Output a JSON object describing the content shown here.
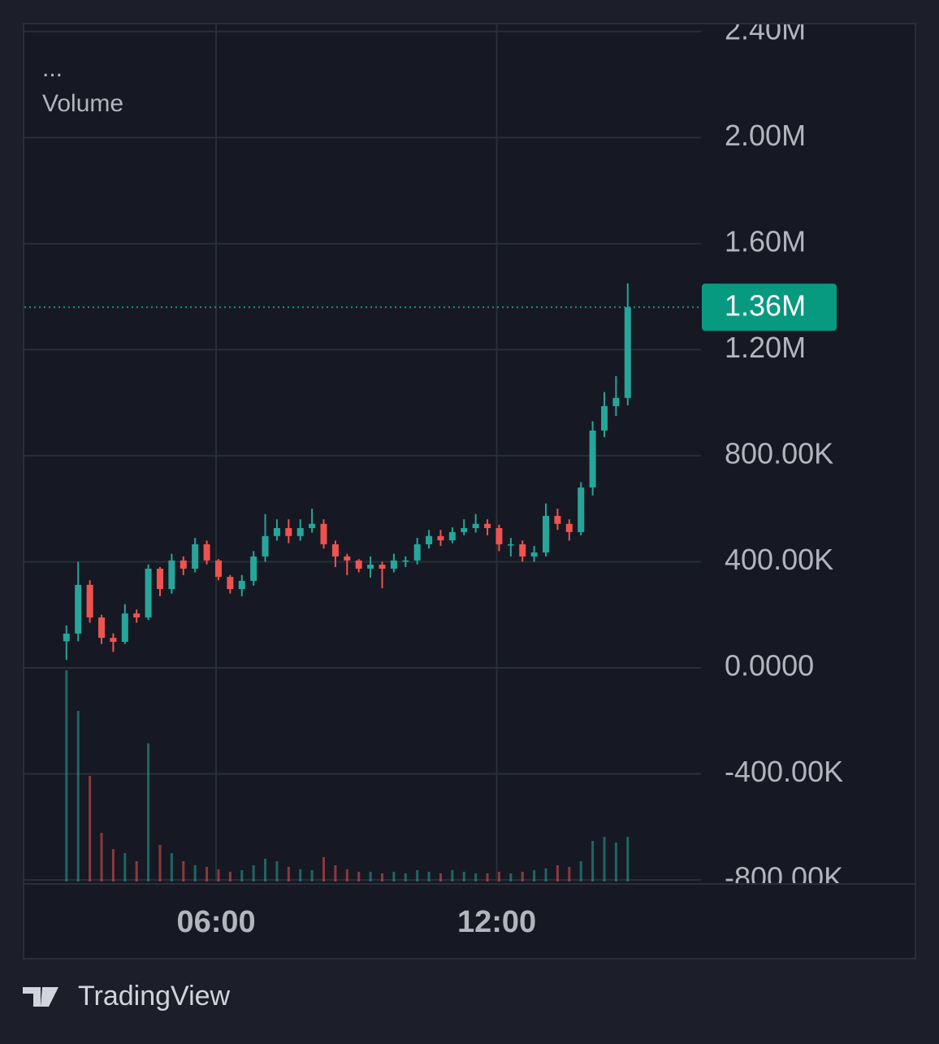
{
  "chart_data": {
    "type": "candlestick",
    "legend": {
      "more": "...",
      "label": "Volume"
    },
    "x": [
      168,
      183,
      198,
      213,
      228,
      243,
      258,
      273,
      288,
      303,
      318,
      333,
      348,
      363,
      378,
      393,
      408,
      423,
      438,
      453,
      468,
      483,
      498,
      513,
      528,
      543,
      558,
      573,
      588,
      603,
      618,
      633,
      648,
      663,
      678,
      693,
      708,
      723,
      738,
      753,
      768,
      783,
      798,
      813,
      828,
      843,
      858,
      873,
      888
    ],
    "open": [
      100000,
      129000,
      313000,
      190000,
      113000,
      98000,
      205000,
      190000,
      374000,
      297000,
      405000,
      374000,
      466000,
      405000,
      343000,
      297000,
      328000,
      420000,
      497000,
      527000,
      497000,
      527000,
      543000,
      466000,
      420000,
      405000,
      374000,
      389000,
      374000,
      405000,
      405000,
      466000,
      497000,
      481000,
      512000,
      527000,
      543000,
      527000,
      466000,
      466000,
      420000,
      435000,
      573000,
      543000,
      512000,
      680000,
      895000,
      987000,
      1018000
    ],
    "high": [
      160000,
      400000,
      330000,
      200000,
      130000,
      240000,
      220000,
      390000,
      380000,
      430000,
      420000,
      490000,
      480000,
      410000,
      350000,
      350000,
      440000,
      580000,
      560000,
      560000,
      560000,
      600000,
      560000,
      480000,
      430000,
      410000,
      420000,
      400000,
      430000,
      420000,
      490000,
      520000,
      520000,
      530000,
      560000,
      580000,
      560000,
      540000,
      490000,
      480000,
      460000,
      620000,
      600000,
      560000,
      700000,
      930000,
      1040000,
      1100000,
      1450000
    ],
    "low": [
      30000,
      100000,
      170000,
      90000,
      60000,
      90000,
      170000,
      180000,
      270000,
      280000,
      350000,
      360000,
      390000,
      330000,
      280000,
      270000,
      310000,
      400000,
      480000,
      470000,
      480000,
      510000,
      450000,
      380000,
      350000,
      360000,
      340000,
      300000,
      360000,
      380000,
      390000,
      450000,
      460000,
      470000,
      500000,
      510000,
      500000,
      440000,
      420000,
      400000,
      400000,
      420000,
      520000,
      480000,
      500000,
      650000,
      870000,
      950000,
      990000
    ],
    "close": [
      129000,
      313000,
      190000,
      113000,
      98000,
      205000,
      190000,
      374000,
      297000,
      405000,
      374000,
      466000,
      405000,
      343000,
      297000,
      328000,
      420000,
      497000,
      527000,
      497000,
      527000,
      543000,
      466000,
      420000,
      405000,
      374000,
      389000,
      374000,
      405000,
      405000,
      466000,
      497000,
      481000,
      512000,
      527000,
      543000,
      527000,
      466000,
      466000,
      420000,
      435000,
      573000,
      543000,
      512000,
      680000,
      895000,
      987000,
      1018000,
      1360000
    ],
    "volume": [
      260,
      210,
      130,
      60,
      40,
      35,
      25,
      170,
      45,
      35,
      25,
      20,
      18,
      15,
      12,
      14,
      20,
      28,
      25,
      18,
      15,
      14,
      30,
      20,
      15,
      12,
      12,
      10,
      12,
      10,
      14,
      12,
      10,
      14,
      12,
      10,
      10,
      12,
      10,
      12,
      14,
      16,
      20,
      18,
      25,
      50,
      55,
      48,
      55
    ],
    "up_color": "#26a69a",
    "down_color": "#ef5350",
    "xlim": [
      114,
      982
    ],
    "xticks": [
      {
        "value": 360,
        "label": "06:00"
      },
      {
        "value": 720,
        "label": "12:00"
      }
    ],
    "ylim": [
      -806000,
      2427000
    ],
    "yticks": [
      {
        "value": -800000,
        "label": "-800.00K"
      },
      {
        "value": -400000,
        "label": "-400.00K"
      },
      {
        "value": 0,
        "label": "0.0000"
      },
      {
        "value": 400000,
        "label": "400.00K"
      },
      {
        "value": 800000,
        "label": "800.00K"
      },
      {
        "value": 1200000,
        "label": "1.20M"
      },
      {
        "value": 1600000,
        "label": "1.60M"
      },
      {
        "value": 2000000,
        "label": "2.00M"
      },
      {
        "value": 2400000,
        "label": "2.40M"
      }
    ],
    "grid": true,
    "last_price": {
      "value": 1360000,
      "label": "1.36M",
      "color": "#089981"
    }
  },
  "footer": {
    "brand": "TradingView"
  }
}
